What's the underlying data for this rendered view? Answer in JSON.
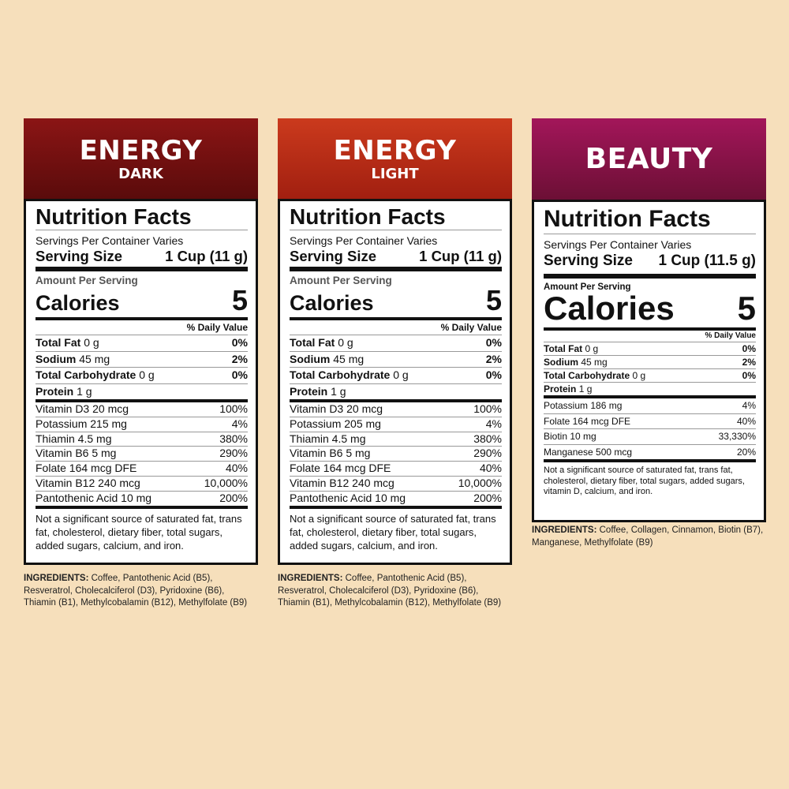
{
  "colors": {
    "background": "#f6dfbb",
    "dark": [
      "#8b1515",
      "#5a0b0b"
    ],
    "light": [
      "#cb3a1d",
      "#a11f10"
    ],
    "beauty": [
      "#a3165a",
      "#6c0f35"
    ]
  },
  "panels": [
    {
      "title": "ENERGY",
      "subtitle": "DARK",
      "heading": "Nutrition Facts",
      "servings": "Servings Per Container Varies",
      "serving_size_label": "Serving Size",
      "serving_size_value": "1 Cup (11 g)",
      "amount_per_serving": "Amount Per Serving",
      "calories_label": "Calories",
      "calories_value": "5",
      "daily_value_header": "% Daily Value",
      "nutrients": [
        {
          "name": "Total Fat",
          "amount": "0 g",
          "dv": "0%"
        },
        {
          "name": "Sodium",
          "amount": "45 mg",
          "dv": "2%"
        },
        {
          "name": "Total Carbohydrate",
          "amount": "0 g",
          "dv": "0%"
        },
        {
          "name": "Protein",
          "amount": "1 g",
          "dv": ""
        }
      ],
      "vitamins": [
        {
          "name": "Vitamin D3 20 mcg",
          "dv": "100%"
        },
        {
          "name": "Potassium 215 mg",
          "dv": "4%"
        },
        {
          "name": "Thiamin 4.5 mg",
          "dv": "380%"
        },
        {
          "name": "Vitamin B6 5 mg",
          "dv": "290%"
        },
        {
          "name": "Folate 164 mcg DFE",
          "dv": "40%"
        },
        {
          "name": "Vitamin B12 240 mcg",
          "dv": "10,000%"
        },
        {
          "name": "Pantothenic Acid 10 mg",
          "dv": "200%"
        }
      ],
      "footnote": "Not a significant source of saturated fat, trans fat, cholesterol, dietary fiber, total sugars, added sugars, calcium, and iron.",
      "ingredients_label": "INGREDIENTS:",
      "ingredients": "Coffee, Pantothenic Acid (B5), Resveratrol, Cholecalciferol (D3), Pyridoxine (B6), Thiamin (B1), Methylcobalamin (B12), Methylfolate (B9)"
    },
    {
      "title": "ENERGY",
      "subtitle": "LIGHT",
      "heading": "Nutrition Facts",
      "servings": "Servings Per Container Varies",
      "serving_size_label": "Serving Size",
      "serving_size_value": "1 Cup (11 g)",
      "amount_per_serving": "Amount Per Serving",
      "calories_label": "Calories",
      "calories_value": "5",
      "daily_value_header": "% Daily Value",
      "nutrients": [
        {
          "name": "Total Fat",
          "amount": "0 g",
          "dv": "0%"
        },
        {
          "name": "Sodium",
          "amount": "45 mg",
          "dv": "2%"
        },
        {
          "name": "Total Carbohydrate",
          "amount": "0 g",
          "dv": "0%"
        },
        {
          "name": "Protein",
          "amount": "1 g",
          "dv": ""
        }
      ],
      "vitamins": [
        {
          "name": "Vitamin D3 20 mcg",
          "dv": "100%"
        },
        {
          "name": "Potassium 205 mg",
          "dv": "4%"
        },
        {
          "name": "Thiamin 4.5 mg",
          "dv": "380%"
        },
        {
          "name": "Vitamin B6 5 mg",
          "dv": "290%"
        },
        {
          "name": "Folate 164 mcg DFE",
          "dv": "40%"
        },
        {
          "name": "Vitamin B12 240 mcg",
          "dv": "10,000%"
        },
        {
          "name": "Pantothenic Acid 10 mg",
          "dv": "200%"
        }
      ],
      "footnote": "Not a significant source of saturated fat, trans fat, cholesterol, dietary fiber, total sugars, added sugars, calcium, and iron.",
      "ingredients_label": "INGREDIENTS:",
      "ingredients": "Coffee, Pantothenic Acid (B5), Resveratrol, Cholecalciferol (D3), Pyridoxine (B6), Thiamin (B1), Methylcobalamin (B12), Methylfolate (B9)"
    },
    {
      "title": "BEAUTY",
      "subtitle": "",
      "heading": "Nutrition Facts",
      "servings": "Servings Per Container Varies",
      "serving_size_label": "Serving Size",
      "serving_size_value": "1 Cup (11.5 g)",
      "amount_per_serving": "Amount Per Serving",
      "calories_label": "Calories",
      "calories_value": "5",
      "daily_value_header": "% Daily Value",
      "nutrients": [
        {
          "name": "Total Fat",
          "amount": "0 g",
          "dv": "0%"
        },
        {
          "name": "Sodium",
          "amount": "45 mg",
          "dv": "2%"
        },
        {
          "name": "Total Carbohydrate",
          "amount": "0 g",
          "dv": "0%"
        },
        {
          "name": "Protein",
          "amount": "1 g",
          "dv": ""
        }
      ],
      "vitamins": [
        {
          "name": "Potassium 186 mg",
          "dv": "4%"
        },
        {
          "name": "Folate 164 mcg DFE",
          "dv": "40%"
        },
        {
          "name": "Biotin 10 mg",
          "dv": "33,330%"
        },
        {
          "name": "Manganese 500 mcg",
          "dv": "20%"
        }
      ],
      "footnote": "Not a significant source of saturated fat, trans fat, cholesterol, dietary fiber, total sugars, added sugars, vitamin D, calcium, and iron.",
      "ingredients_label": "INGREDIENTS:",
      "ingredients": "Coffee, Collagen, Cinnamon, Biotin (B7), Manganese, Methylfolate (B9)"
    }
  ]
}
